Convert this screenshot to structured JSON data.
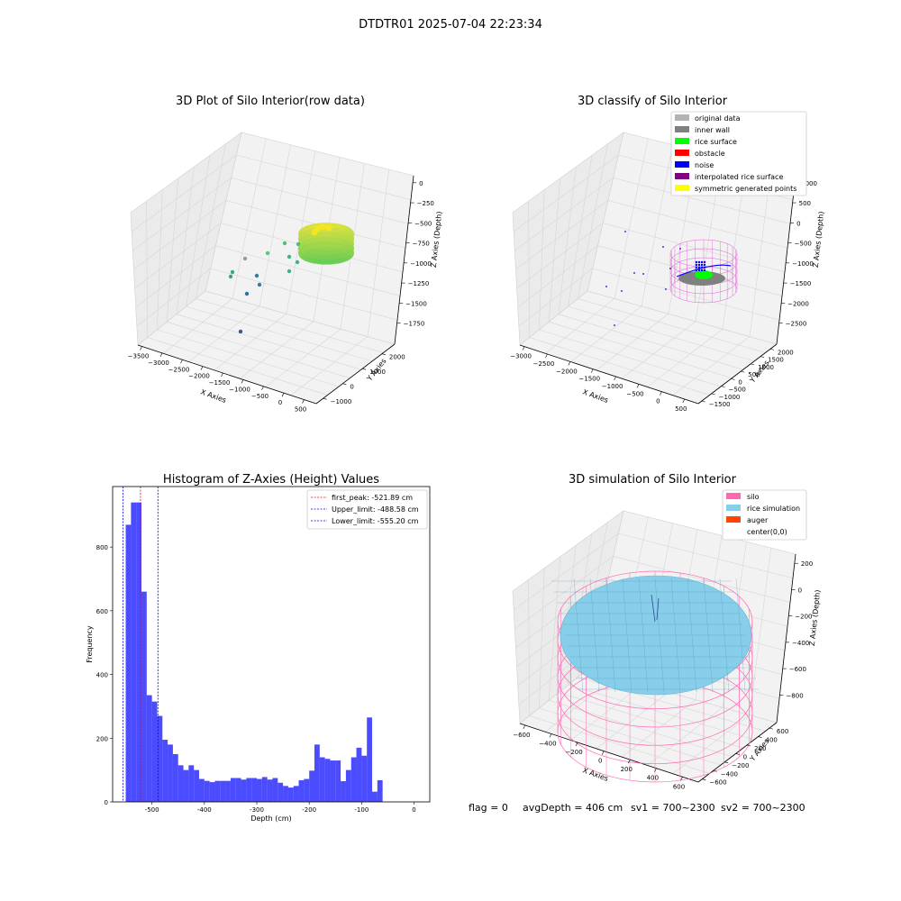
{
  "suptitle": "DTDTR01 2025-07-04 22:23:34",
  "chart_data": [
    {
      "type": "scatter",
      "title": "3D Plot of Silo Interior(row data)",
      "xlabel": "X Axies",
      "ylabel": "Y Axies",
      "zlabel": "Z Axies (Depth)",
      "x_ticks": [
        "−3500",
        "−3000",
        "−2500",
        "−2000",
        "−1500",
        "−1000",
        "−500",
        "0",
        "500"
      ],
      "y_ticks": [
        "−1000",
        "0",
        "1000",
        "2000"
      ],
      "z_ticks": [
        "0",
        "−250",
        "−500",
        "−750",
        "−1000",
        "−1250",
        "−1500",
        "−1750"
      ],
      "grid": true,
      "colormap": "viridis"
    },
    {
      "type": "scatter",
      "title": "3D classify of Silo Interior",
      "xlabel": "X Axies",
      "ylabel": "Y Axies",
      "zlabel": "Z Axies (Depth)",
      "x_ticks": [
        "−3000",
        "−2500",
        "−2000",
        "−1500",
        "−1000",
        "−500",
        "0",
        "500"
      ],
      "y_ticks": [
        "−1500",
        "−1000",
        "−500",
        "0",
        "500",
        "1000",
        "1500",
        "2000"
      ],
      "z_ticks": [
        "1000",
        "500",
        "0",
        "−500",
        "−1000",
        "−1500",
        "−2000",
        "−2500"
      ],
      "grid": true,
      "legend_position": "top-right",
      "legend": [
        {
          "label": "original data",
          "color": "#b3b3b3"
        },
        {
          "label": "inner wall",
          "color": "#808080"
        },
        {
          "label": "rice surface",
          "color": "#00ff00"
        },
        {
          "label": "obstacle",
          "color": "#ff0000"
        },
        {
          "label": "noise",
          "color": "#0000ff"
        },
        {
          "label": "interpolated rice surface",
          "color": "#800080"
        },
        {
          "label": "symmetric generated points",
          "color": "#ffff00"
        }
      ]
    },
    {
      "type": "bar",
      "title": "Histogram of Z-Axies (Height) Values",
      "xlabel": "Depth (cm)",
      "ylabel": "Frequency",
      "xlim": [
        -575,
        30
      ],
      "ylim": [
        0,
        990
      ],
      "x_ticks": [
        -500,
        -400,
        -300,
        -200,
        -100,
        0
      ],
      "y_ticks": [
        0,
        200,
        400,
        600,
        800
      ],
      "bar_color": "#0000ff",
      "bin_start": -550,
      "bin_width": 10,
      "values": [
        870,
        940,
        940,
        660,
        335,
        315,
        270,
        195,
        180,
        150,
        115,
        100,
        115,
        100,
        72,
        66,
        62,
        66,
        66,
        66,
        75,
        75,
        70,
        75,
        75,
        72,
        78,
        70,
        75,
        60,
        50,
        45,
        50,
        68,
        72,
        98,
        180,
        140,
        135,
        130,
        130,
        65,
        100,
        140,
        170,
        145,
        265,
        32,
        68
      ],
      "vlines": [
        {
          "label": "first_peak: -521.89 cm",
          "x": -521.89,
          "color": "#ff0000"
        },
        {
          "label": "Upper_limit: -488.58 cm",
          "x": -488.58,
          "color": "#0000ff"
        },
        {
          "label": "Lower_limit: -555.20 cm",
          "x": -555.2,
          "color": "#0000ff"
        }
      ],
      "legend_position": "top-right"
    },
    {
      "type": "scatter",
      "title": "3D simulation of Silo Interior",
      "xlabel": "X Axies",
      "ylabel": "Y Axies",
      "zlabel": "Z Axies (Depth)",
      "x_ticks": [
        "−600",
        "−400",
        "−200",
        "0",
        "200",
        "400",
        "600"
      ],
      "y_ticks": [
        "−600",
        "−400",
        "−200",
        "0",
        "200",
        "400",
        "600"
      ],
      "z_ticks": [
        "200",
        "0",
        "−200",
        "−400",
        "−600",
        "−800"
      ],
      "grid": true,
      "legend_position": "top-right",
      "legend": [
        {
          "label": "silo",
          "color": "#ff69b4"
        },
        {
          "label": "rice simulation",
          "color": "#87ceeb"
        },
        {
          "label": "auger",
          "color": "#ff4500"
        },
        {
          "label": "center(0,0)",
          "color": "#ffffff"
        }
      ]
    }
  ],
  "status": {
    "flag": "flag = 0",
    "avg_depth": "avgDepth = 406 cm",
    "sv1": "sv1 = 700~2300",
    "sv2": "sv2 = 700~2300"
  }
}
